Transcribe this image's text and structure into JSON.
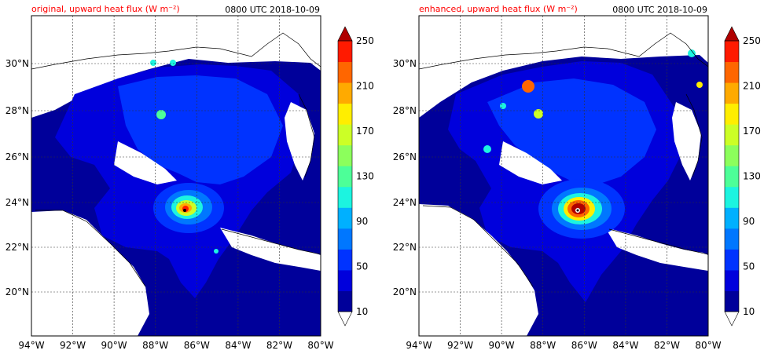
{
  "figure": {
    "panels": [
      {
        "id": "original",
        "title": "original, upward heat flux (W m⁻²)",
        "time": "0800 UTC 2018-10-09"
      },
      {
        "id": "enhanced",
        "title": "enhanced, upward heat flux (W m⁻²)",
        "time": "0800 UTC 2018-10-09"
      }
    ],
    "lon_ticks": [
      "94°W",
      "92°W",
      "90°W",
      "88°W",
      "86°W",
      "84°W",
      "82°W",
      "80°W"
    ],
    "lat_ticks": [
      "30°N",
      "28°N",
      "26°N",
      "24°N",
      "22°N",
      "20°N"
    ],
    "colorbar": {
      "ticks": [
        "250",
        "210",
        "170",
        "130",
        "90",
        "50",
        "10"
      ],
      "levels": [
        10,
        30,
        50,
        70,
        90,
        110,
        130,
        150,
        170,
        190,
        210,
        230,
        250
      ],
      "colors": [
        "#00009a",
        "#0000dc",
        "#0033ff",
        "#0077ff",
        "#00b0ff",
        "#1cf4e0",
        "#4dff98",
        "#8cff5c",
        "#ccff26",
        "#ffee00",
        "#ffaa00",
        "#ff6600",
        "#ff1a00",
        "#b00000"
      ],
      "extend": "both"
    }
  }
}
